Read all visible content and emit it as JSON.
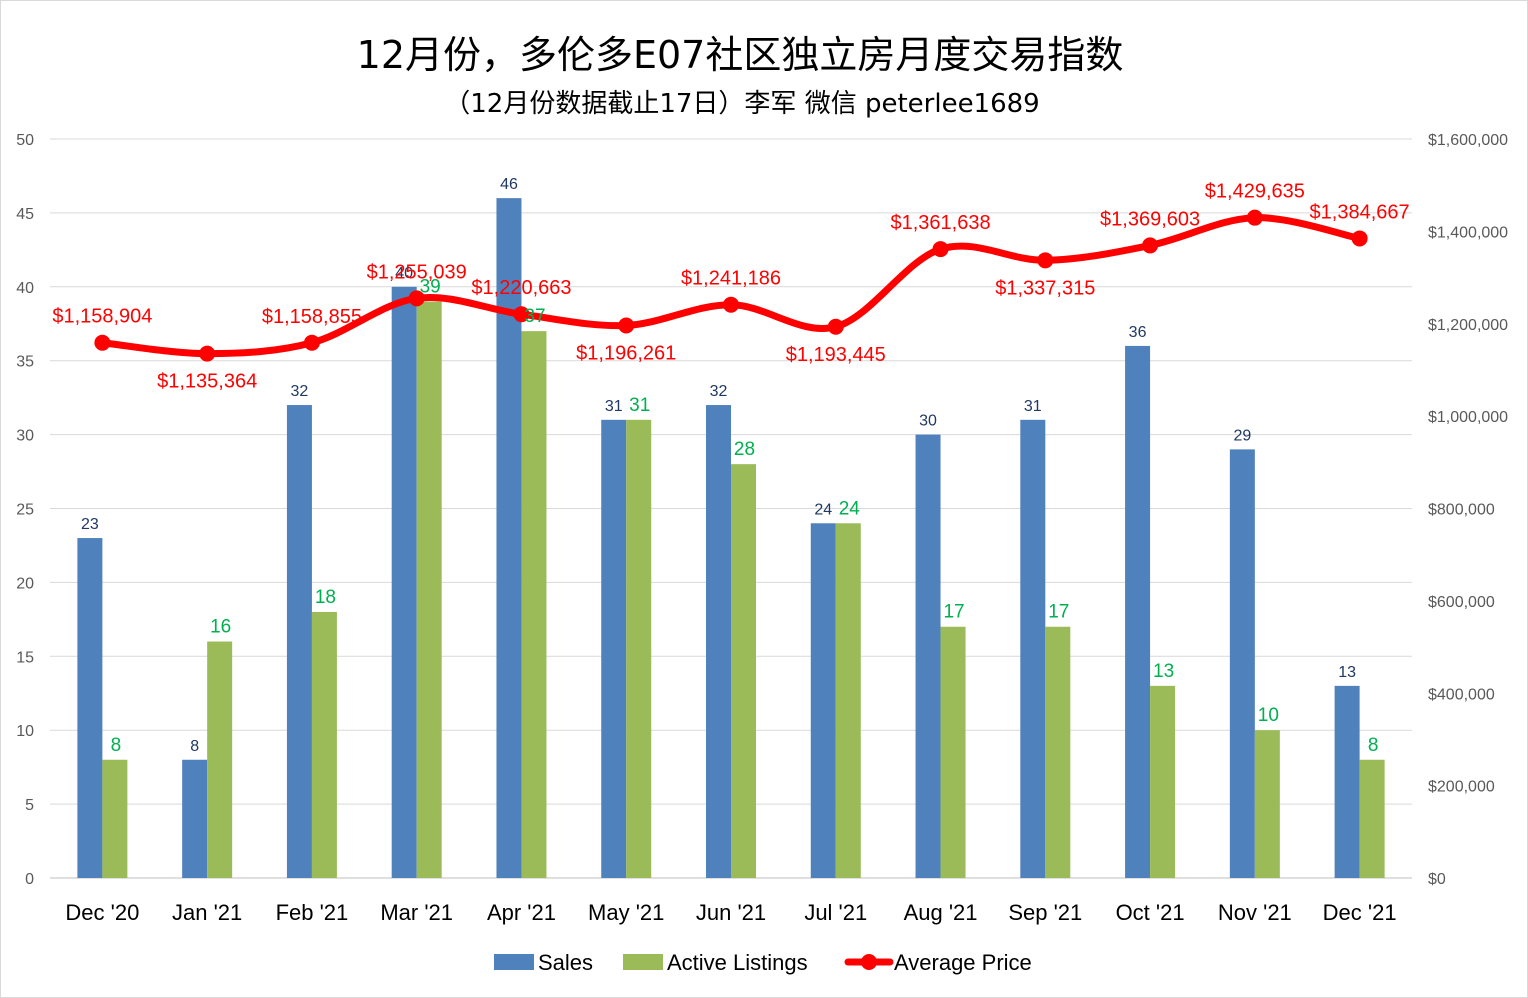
{
  "chart_data": {
    "type": "bar",
    "title": "12月份，多伦多E07社区独立房月度交易指数",
    "subtitle": "（12月份数据截止17日）李军 微信 peterlee1689",
    "categories": [
      "Dec '20",
      "Jan '21",
      "Feb '21",
      "Mar '21",
      "Apr '21",
      "May '21",
      "Jun '21",
      "Jul '21",
      "Aug '21",
      "Sep '21",
      "Oct '21",
      "Nov '21",
      "Dec '21"
    ],
    "series": [
      {
        "name": "Sales",
        "type": "bar",
        "axis": "left",
        "color": "#4f81bd",
        "values": [
          23,
          8,
          32,
          40,
          46,
          31,
          32,
          24,
          30,
          31,
          36,
          29,
          13
        ],
        "labels": [
          "23",
          "8",
          "32",
          "40",
          "46",
          "31",
          "32",
          "24",
          "30",
          "31",
          "36",
          "29",
          "13"
        ]
      },
      {
        "name": "Active Listings",
        "type": "bar",
        "axis": "right",
        "color": "#9bbb59",
        "axis_note": "plotted on left axis",
        "values": [
          8,
          16,
          18,
          39,
          37,
          31,
          28,
          24,
          17,
          17,
          13,
          10,
          8
        ],
        "labels": [
          "8",
          "16",
          "18",
          "39",
          "37",
          "31",
          "28",
          "24",
          "17",
          "17",
          "13",
          "10",
          "8"
        ]
      },
      {
        "name": "Average Price",
        "type": "line",
        "axis": "right",
        "color": "#ff0000",
        "values": [
          1158904,
          1135364,
          1158855,
          1255039,
          1220663,
          1196261,
          1241186,
          1193445,
          1361638,
          1337315,
          1369603,
          1429635,
          1384667
        ],
        "labels": [
          "$1,158,904",
          "$1,135,364",
          "$1,158,855",
          "$1,255,039",
          "$1,220,663",
          "$1,196,261",
          "$1,241,186",
          "$1,193,445",
          "$1,361,638",
          "$1,337,315",
          "$1,369,603",
          "$1,429,635",
          "$1,384,667"
        ]
      }
    ],
    "y_left": {
      "min": 0,
      "max": 50,
      "ticks": [
        "0",
        "5",
        "10",
        "15",
        "20",
        "25",
        "30",
        "35",
        "40",
        "45",
        "50"
      ]
    },
    "y_right": {
      "min": 0,
      "max": 1600000,
      "ticks": [
        "$0",
        "$200,000",
        "$400,000",
        "$600,000",
        "$800,000",
        "$1,000,000",
        "$1,200,000",
        "$1,400,000",
        "$1,600,000"
      ]
    },
    "grid": true,
    "legend": "bottom",
    "legend_entries": [
      "Sales",
      "Active Listings",
      "Average Price"
    ]
  }
}
